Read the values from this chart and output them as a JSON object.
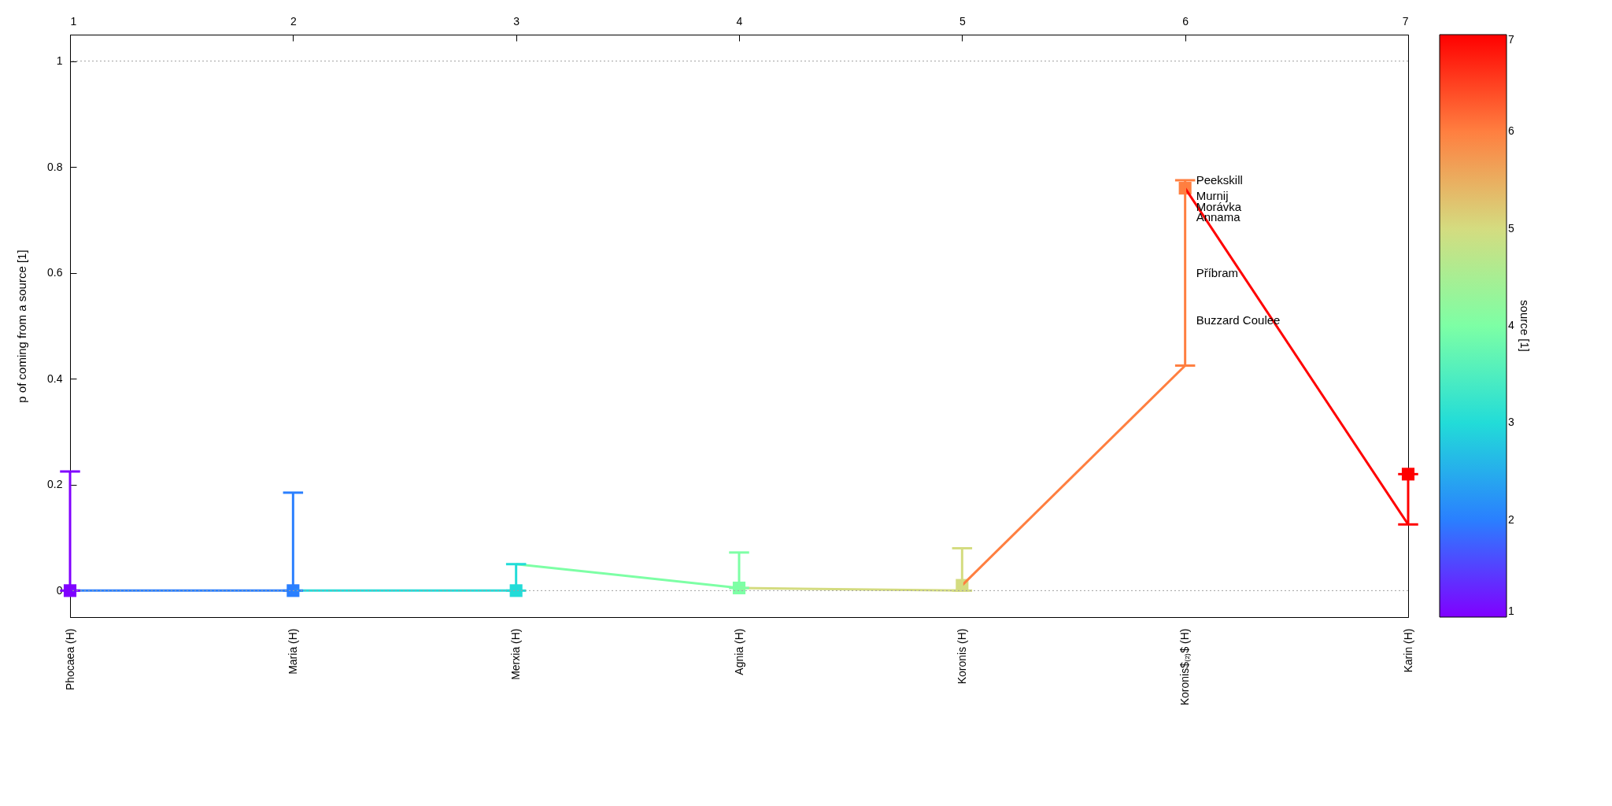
{
  "chart_data": {
    "type": "line",
    "ylabel": "p of coming from a source [1]",
    "clabel": "source [1]",
    "categories": [
      "Phocaea (H)",
      "Maria (H)",
      "Merxia (H)",
      "Agnia (H)",
      "Koronis (H)",
      "Koronis$₍₂₎$ (H)",
      "Karin (H)"
    ],
    "x2lim": [
      1,
      7
    ],
    "x2ticks": [
      1,
      2,
      3,
      4,
      5,
      6,
      7
    ],
    "ylim": [
      -0.05,
      1.05
    ],
    "yticks": [
      0,
      0.2,
      0.4,
      0.6,
      0.8,
      1
    ],
    "clim": [
      1,
      7
    ],
    "cticks": [
      1,
      2,
      3,
      4,
      5,
      6,
      7
    ],
    "ref_lines": [
      {
        "axis": "y",
        "value": 0,
        "color": "#a0a0a0",
        "line_style": "dotted"
      },
      {
        "axis": "y",
        "value": 1,
        "color": "#a0a0a0",
        "line_style": "dotted"
      }
    ],
    "annotations": [
      {
        "text": "Peekskill",
        "x": "Koronis$₍₂₎$ (H)",
        "y": 0.775
      },
      {
        "text": "Murnij",
        "x": "Koronis$₍₂₎$ (H)",
        "y": 0.745
      },
      {
        "text": "Morávka",
        "x": "Koronis$₍₂₎$ (H)",
        "y": 0.725
      },
      {
        "text": "Annama",
        "x": "Koronis$₍₂₎$ (H)",
        "y": 0.705
      },
      {
        "text": "Příbram",
        "x": "Koronis$₍₂₎$ (H)",
        "y": 0.6
      },
      {
        "text": "Buzzard Coulee",
        "x": "Koronis$₍₂₎$ (H)",
        "y": 0.51
      }
    ],
    "series": [
      {
        "type": "line",
        "values": [
          0,
          0,
          null,
          null,
          null,
          null,
          null
        ],
        "color": "#2a7fff"
      },
      {
        "type": "line",
        "values": [
          null,
          0,
          0,
          null,
          null,
          null,
          null
        ],
        "color": "#22dcd8"
      },
      {
        "type": "line",
        "values": [
          null,
          null,
          0.05,
          0.005,
          null,
          null,
          null
        ],
        "color": "#7dffa5"
      },
      {
        "type": "line",
        "values": [
          null,
          null,
          null,
          0.005,
          0,
          null,
          null
        ],
        "color": "#d4dc80"
      },
      {
        "type": "line",
        "values": [
          null,
          null,
          null,
          null,
          0.01,
          0.425,
          null
        ],
        "color": "#ff7f40"
      },
      {
        "type": "line",
        "values": [
          null,
          null,
          null,
          null,
          null,
          0.76,
          0.125
        ],
        "color": "#ff0000"
      },
      {
        "type": "scatter",
        "marker": "square",
        "values": [
          0,
          0,
          0,
          0.005,
          0.01,
          0.76,
          0.22
        ],
        "cvalues": [
          1,
          2,
          3,
          4,
          5,
          6,
          7
        ],
        "colors": [
          "#8000ff",
          "#2a7fff",
          "#22dcd8",
          "#7dffa5",
          "#d4dc80",
          "#ff7f40",
          "#ff0000"
        ],
        "errors": [
          [
            0,
            0.225
          ],
          [
            0,
            0.185
          ],
          [
            0,
            0.05
          ],
          [
            0.005,
            0.072
          ],
          [
            0,
            0.08
          ],
          [
            0.425,
            0.775
          ],
          [
            0.125,
            0.22
          ]
        ]
      }
    ]
  }
}
